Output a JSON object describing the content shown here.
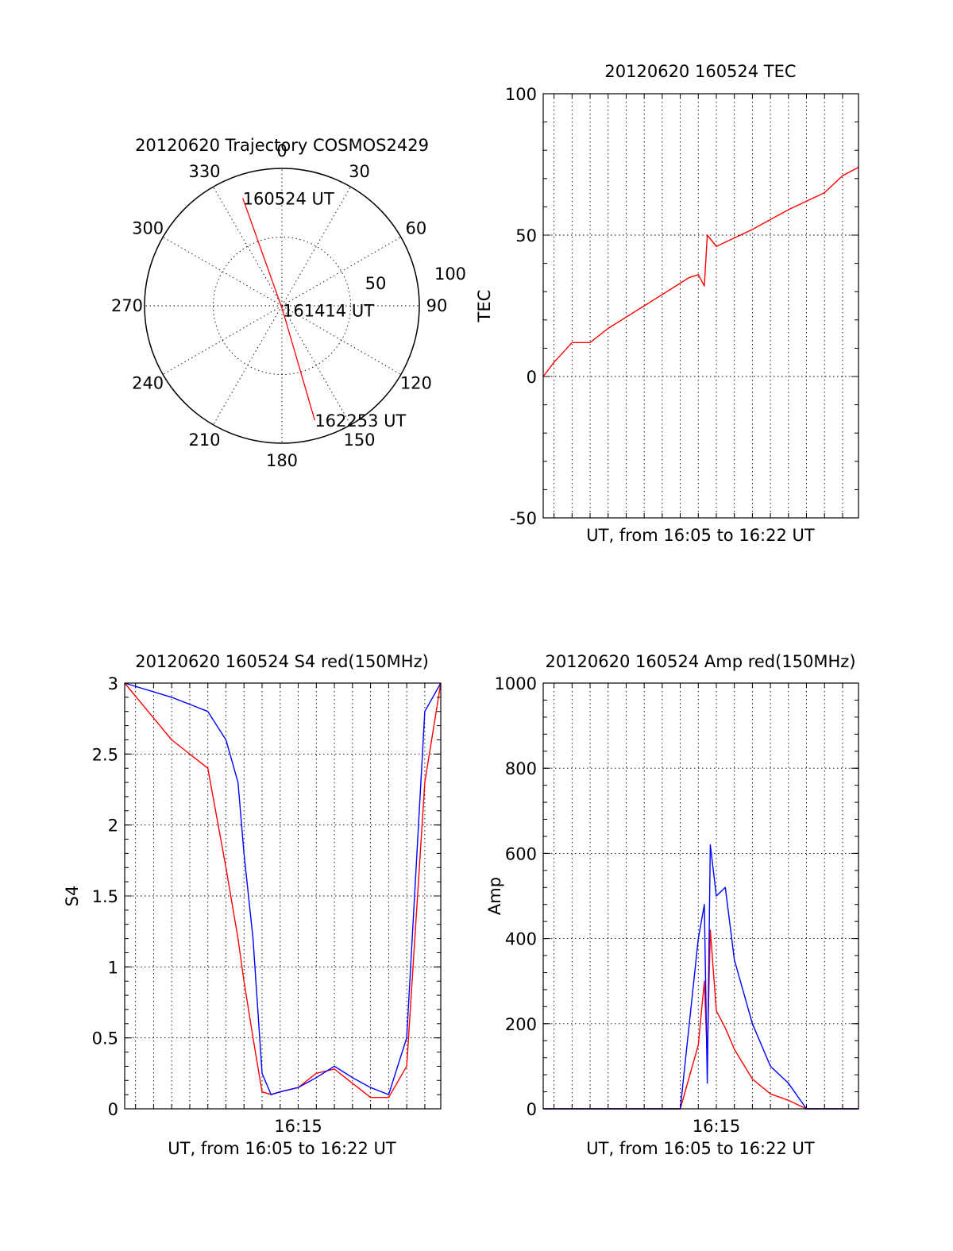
{
  "colors": {
    "red": "#ff0000",
    "blue": "#0000ff",
    "axis": "#000000",
    "background": "#ffffff"
  },
  "chart_data": [
    {
      "type": "polar",
      "title": "20120620 Trajectory COSMOS2429",
      "angle_labels": [
        "0",
        "30",
        "60",
        "90",
        "120",
        "150",
        "180",
        "210",
        "240",
        "270",
        "300",
        "330"
      ],
      "radial_labels": [
        "50",
        "100"
      ],
      "series": [
        {
          "color": "#ff0000",
          "points": [
            {
              "azimuth": 340,
              "elevation": 15,
              "label": "160524 UT"
            },
            {
              "azimuth": 170,
              "elevation": 87,
              "label": "161414 UT"
            },
            {
              "azimuth": 164,
              "elevation": 12,
              "label": "162253 UT"
            }
          ]
        }
      ]
    },
    {
      "type": "line",
      "title": "20120620 160524 TEC",
      "xlabel": "UT, from 16:05 to 16:22 UT",
      "ylabel": "TEC",
      "xlim": [
        "16:05:24",
        "16:22:53"
      ],
      "ylim": [
        -50,
        100
      ],
      "yticks": [
        -50,
        0,
        50,
        100
      ],
      "grid": true,
      "series": [
        {
          "color": "#ff0000",
          "x": [
            "16:05:24",
            "16:06:00",
            "16:07:00",
            "16:08:00",
            "16:09:00",
            "16:10:00",
            "16:11:00",
            "16:12:00",
            "16:13:00",
            "16:13:30",
            "16:14:00",
            "16:14:20",
            "16:14:30",
            "16:15:00",
            "16:17:00",
            "16:19:00",
            "16:20:00",
            "16:21:00",
            "16:22:00",
            "16:22:53"
          ],
          "values": [
            0,
            5,
            12,
            12,
            17,
            21,
            25,
            29,
            33,
            35,
            36,
            32,
            50,
            46,
            52,
            59,
            62,
            65,
            71,
            74
          ]
        }
      ]
    },
    {
      "type": "line",
      "title": "20120620 160524 S4 red(150MHz)",
      "xlabel": "UT, from 16:05 to 16:22 UT",
      "ylabel": "S4",
      "xlim": [
        "16:05:24",
        "16:22:53"
      ],
      "ylim": [
        0,
        3
      ],
      "yticks": [
        0,
        0.5,
        1,
        1.5,
        2,
        2.5,
        3
      ],
      "xticks": [
        "16:15"
      ],
      "grid": true,
      "series": [
        {
          "color": "#ff0000",
          "x": [
            "16:05:24",
            "16:08:00",
            "16:10:00",
            "16:11:00",
            "16:11:40",
            "16:12:00",
            "16:12:30",
            "16:13:00",
            "16:13:30",
            "16:14:00",
            "16:15:00",
            "16:16:00",
            "16:17:00",
            "16:18:00",
            "16:19:00",
            "16:20:00",
            "16:21:00",
            "16:22:00",
            "16:22:53"
          ],
          "values": [
            3,
            2.6,
            2.4,
            1.7,
            1.2,
            0.9,
            0.5,
            0.12,
            0.1,
            0.12,
            0.15,
            0.25,
            0.28,
            0.18,
            0.08,
            0.08,
            0.3,
            2.3,
            3
          ]
        },
        {
          "color": "#0000ff",
          "x": [
            "16:05:24",
            "16:08:00",
            "16:10:00",
            "16:11:00",
            "16:11:40",
            "16:12:00",
            "16:12:30",
            "16:13:00",
            "16:13:30",
            "16:14:00",
            "16:15:00",
            "16:16:00",
            "16:17:00",
            "16:18:00",
            "16:19:00",
            "16:20:00",
            "16:21:00",
            "16:22:00",
            "16:22:53"
          ],
          "values": [
            3,
            2.9,
            2.8,
            2.6,
            2.3,
            1.8,
            1.2,
            0.25,
            0.1,
            0.12,
            0.15,
            0.22,
            0.3,
            0.22,
            0.15,
            0.1,
            0.5,
            2.8,
            3
          ]
        }
      ]
    },
    {
      "type": "line",
      "title": "20120620 160524 Amp red(150MHz)",
      "xlabel": "UT, from 16:05 to 16:22 UT",
      "ylabel": "Amp",
      "xlim": [
        "16:05:24",
        "16:22:53"
      ],
      "ylim": [
        0,
        1000
      ],
      "yticks": [
        0,
        200,
        400,
        600,
        800,
        1000
      ],
      "xticks": [
        "16:15"
      ],
      "grid": true,
      "series": [
        {
          "color": "#ff0000",
          "x": [
            "16:05:24",
            "16:13:00",
            "16:14:00",
            "16:14:20",
            "16:14:30",
            "16:14:40",
            "16:15:00",
            "16:15:30",
            "16:16:00",
            "16:17:00",
            "16:18:00",
            "16:19:00",
            "16:20:00",
            "16:22:53"
          ],
          "values": [
            0,
            0,
            150,
            300,
            120,
            420,
            230,
            190,
            140,
            70,
            35,
            20,
            0,
            0
          ]
        },
        {
          "color": "#0000ff",
          "x": [
            "16:05:24",
            "16:13:00",
            "16:14:00",
            "16:14:20",
            "16:14:30",
            "16:14:40",
            "16:15:00",
            "16:15:30",
            "16:16:00",
            "16:17:00",
            "16:18:00",
            "16:19:00",
            "16:20:00",
            "16:22:53"
          ],
          "values": [
            0,
            0,
            400,
            480,
            60,
            620,
            500,
            520,
            350,
            200,
            100,
            60,
            0,
            0
          ]
        }
      ]
    }
  ]
}
